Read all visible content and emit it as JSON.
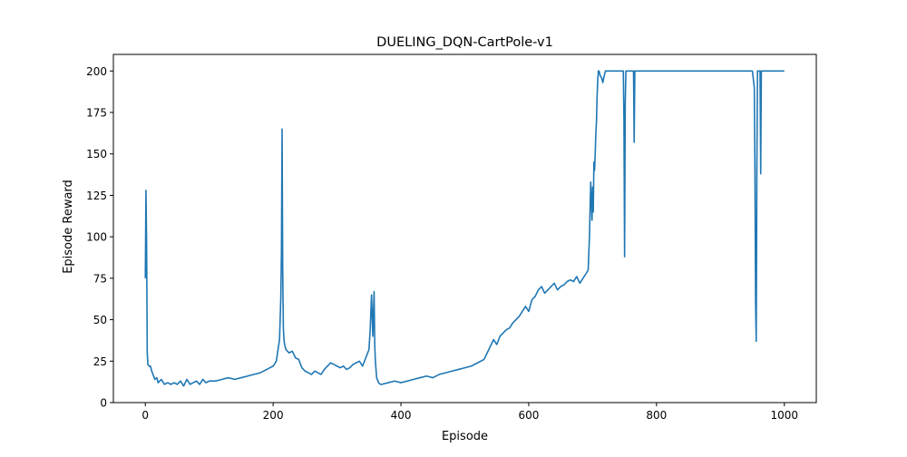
{
  "chart_data": {
    "type": "line",
    "title": "DUELING_DQN-CartPole-v1",
    "xlabel": "Episode",
    "ylabel": "Episode Reward",
    "xlim": [
      -50,
      1050
    ],
    "ylim": [
      0,
      210
    ],
    "xticks": [
      0,
      200,
      400,
      600,
      800,
      1000
    ],
    "yticks": [
      0,
      25,
      50,
      75,
      100,
      125,
      150,
      175,
      200
    ],
    "grid": false,
    "legend": "none",
    "series": [
      {
        "color": "#1f77b4",
        "x": [
          0,
          1,
          2,
          3,
          4,
          6,
          8,
          10,
          12,
          15,
          18,
          20,
          25,
          30,
          35,
          40,
          45,
          50,
          55,
          60,
          65,
          70,
          75,
          80,
          85,
          90,
          95,
          100,
          110,
          120,
          130,
          140,
          150,
          160,
          170,
          180,
          190,
          195,
          200,
          205,
          210,
          211,
          212,
          213,
          214,
          215,
          216,
          217,
          218,
          220,
          225,
          230,
          235,
          240,
          245,
          250,
          255,
          260,
          265,
          270,
          275,
          280,
          285,
          290,
          295,
          300,
          305,
          310,
          315,
          320,
          325,
          330,
          335,
          340,
          345,
          350,
          352,
          354,
          356,
          358,
          359,
          360,
          362,
          365,
          368,
          370,
          380,
          390,
          400,
          410,
          420,
          430,
          440,
          450,
          460,
          470,
          480,
          490,
          500,
          510,
          520,
          530,
          535,
          540,
          545,
          550,
          555,
          560,
          565,
          570,
          575,
          580,
          585,
          590,
          595,
          600,
          605,
          610,
          615,
          620,
          625,
          630,
          635,
          640,
          645,
          650,
          655,
          660,
          665,
          670,
          675,
          680,
          685,
          690,
          693,
          695,
          697,
          699,
          700,
          701,
          702,
          703,
          704,
          705,
          706,
          707,
          708,
          709,
          710,
          712,
          714,
          716,
          718,
          720,
          721,
          722,
          725,
          730,
          735,
          740,
          745,
          748,
          749,
          750,
          751,
          752,
          760,
          764,
          765,
          766,
          770,
          780,
          800,
          850,
          900,
          940,
          950,
          953,
          954,
          955,
          956,
          957,
          958,
          960,
          962,
          963,
          964,
          965,
          970,
          980,
          1000
        ],
        "y": [
          75,
          128,
          95,
          30,
          23,
          22,
          22,
          19,
          17,
          14,
          15,
          12,
          14,
          11,
          12,
          11,
          12,
          11,
          13,
          10,
          14,
          11,
          12,
          13,
          11,
          14,
          12,
          13,
          13,
          14,
          15,
          14,
          15,
          16,
          17,
          18,
          20,
          21,
          22,
          25,
          38,
          50,
          63,
          90,
          165,
          80,
          45,
          38,
          35,
          32,
          30,
          31,
          27,
          26,
          21,
          19,
          18,
          17,
          19,
          18,
          17,
          20,
          22,
          24,
          23,
          22,
          21,
          22,
          20,
          21,
          23,
          24,
          25,
          22,
          27,
          32,
          45,
          65,
          40,
          67,
          35,
          25,
          15,
          12,
          11,
          11,
          12,
          13,
          12,
          13,
          14,
          15,
          16,
          15,
          17,
          18,
          19,
          20,
          21,
          22,
          24,
          26,
          30,
          34,
          38,
          35,
          40,
          42,
          44,
          45,
          48,
          50,
          52,
          55,
          58,
          55,
          62,
          64,
          68,
          70,
          66,
          68,
          70,
          72,
          68,
          70,
          71,
          73,
          74,
          73,
          76,
          72,
          75,
          78,
          80,
          100,
          133,
          110,
          130,
          115,
          145,
          140,
          150,
          162,
          170,
          185,
          195,
          200,
          200,
          197,
          196,
          193,
          197,
          200,
          200,
          200,
          200,
          200,
          200,
          200,
          200,
          200,
          170,
          88,
          180,
          200,
          200,
          200,
          157,
          200,
          200,
          200,
          200,
          200,
          200,
          200,
          200,
          190,
          140,
          60,
          37,
          140,
          200,
          200,
          200,
          138,
          200,
          200,
          200,
          200,
          200
        ]
      }
    ]
  }
}
